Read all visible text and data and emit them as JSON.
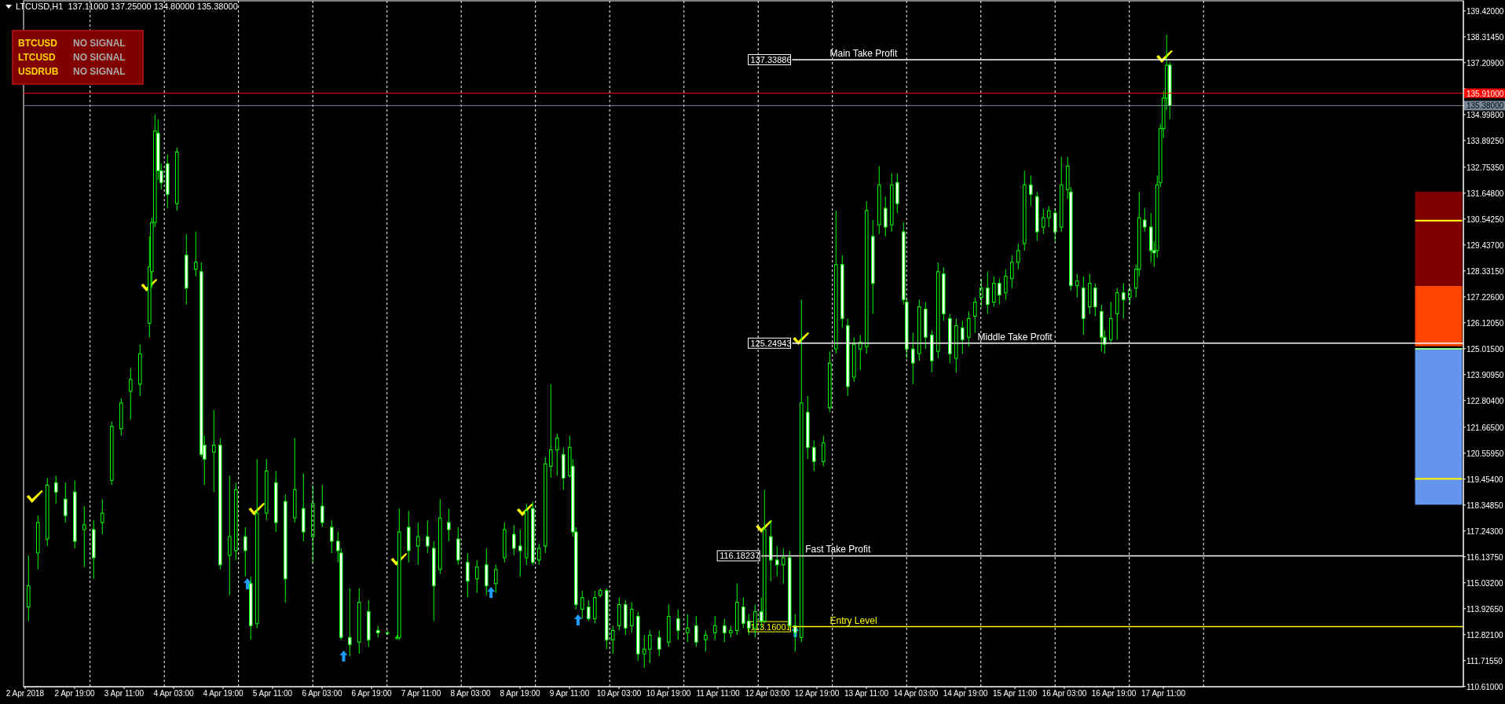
{
  "chart_data": {
    "type": "candlestick",
    "title": "LTCUSD,H1  137.11000 137.25000 134.80000 135.38000",
    "series": [
      {
        "color": "#00ff00",
        "x": [
          "2018-04-02T04:00",
          "2018-04-02T07:00",
          "2018-04-02T10:00",
          "2018-04-02T13:00",
          "2018-04-02T16:00",
          "2018-04-02T19:00",
          "2018-04-02T22:00",
          "2018-04-03T01:00",
          "2018-04-03T04:00",
          "2018-04-03T07:00",
          "2018-04-03T10:00",
          "2018-04-03T13:00",
          "2018-04-03T16:00",
          "2018-04-03T19:00",
          "2018-04-03T20:00",
          "2018-04-03T21:00",
          "2018-04-03T22:00",
          "2018-04-03T23:00",
          "2018-04-04T01:00",
          "2018-04-04T04:00",
          "2018-04-04T07:00",
          "2018-04-04T10:00",
          "2018-04-04T12:00",
          "2018-04-04T13:00",
          "2018-04-04T16:00",
          "2018-04-04T18:00",
          "2018-04-04T21:00",
          "2018-04-04T23:00",
          "2018-04-05T02:00",
          "2018-04-05T04:00",
          "2018-04-05T06:00",
          "2018-04-05T09:00",
          "2018-04-05T12:00",
          "2018-04-05T15:00",
          "2018-04-05T18:00",
          "2018-04-05T21:00",
          "2018-04-06T00:00",
          "2018-04-06T03:00",
          "2018-04-06T06:00",
          "2018-04-06T08:00",
          "2018-04-06T09:00",
          "2018-04-06T12:00",
          "2018-04-06T15:00",
          "2018-04-06T18:00",
          "2018-04-06T21:00",
          "2018-04-07T00:00",
          "2018-04-07T03:00",
          "2018-04-07T04:00",
          "2018-04-07T07:00",
          "2018-04-07T10:00",
          "2018-04-07T13:00",
          "2018-04-07T15:00",
          "2018-04-07T17:00",
          "2018-04-07T20:00",
          "2018-04-07T23:00",
          "2018-04-08T02:00",
          "2018-04-08T05:00",
          "2018-04-08T08:00",
          "2018-04-08T11:00",
          "2018-04-08T14:00",
          "2018-04-08T17:00",
          "2018-04-08T19:00",
          "2018-04-08T21:00",
          "2018-04-08T23:00",
          "2018-04-09T01:00",
          "2018-04-09T03:00",
          "2018-04-09T05:00",
          "2018-04-09T07:00",
          "2018-04-09T09:00",
          "2018-04-09T11:00",
          "2018-04-09T12:00",
          "2018-04-09T13:00",
          "2018-04-09T15:00",
          "2018-04-09T17:00",
          "2018-04-09T19:00",
          "2018-04-09T21:00",
          "2018-04-09T23:00",
          "2018-04-10T01:00",
          "2018-04-10T03:00",
          "2018-04-10T05:00",
          "2018-04-10T07:00",
          "2018-04-10T09:00",
          "2018-04-10T11:00",
          "2018-04-10T13:00",
          "2018-04-10T16:00",
          "2018-04-10T19:00",
          "2018-04-10T22:00",
          "2018-04-11T01:00",
          "2018-04-11T04:00",
          "2018-04-11T07:00",
          "2018-04-11T10:00",
          "2018-04-11T13:00",
          "2018-04-11T15:00",
          "2018-04-11T17:00",
          "2018-04-11T19:00",
          "2018-04-11T21:00",
          "2018-04-11T23:00",
          "2018-04-12T01:00",
          "2018-04-12T02:00",
          "2018-04-12T04:00",
          "2018-04-12T06:00",
          "2018-04-12T08:00",
          "2018-04-12T10:00",
          "2018-04-12T12:00",
          "2018-04-12T14:00",
          "2018-04-12T16:00",
          "2018-04-12T18:00",
          "2018-04-12T21:00",
          "2018-04-12T23:00",
          "2018-04-13T01:00",
          "2018-04-13T03:00",
          "2018-04-13T05:00",
          "2018-04-13T07:00",
          "2018-04-13T09:00",
          "2018-04-13T11:00",
          "2018-04-13T13:00",
          "2018-04-13T15:00",
          "2018-04-13T17:00",
          "2018-04-13T19:00",
          "2018-04-13T21:00",
          "2018-04-13T23:00",
          "2018-04-14T00:00",
          "2018-04-14T02:00",
          "2018-04-14T04:00",
          "2018-04-14T06:00",
          "2018-04-14T08:00",
          "2018-04-14T10:00",
          "2018-04-14T12:00",
          "2018-04-14T14:00",
          "2018-04-14T16:00",
          "2018-04-14T18:00",
          "2018-04-14T20:00",
          "2018-04-14T22:00",
          "2018-04-15T00:00",
          "2018-04-15T02:00",
          "2018-04-15T04:00",
          "2018-04-15T06:00",
          "2018-04-15T08:00",
          "2018-04-15T10:00",
          "2018-04-15T12:00",
          "2018-04-15T14:00",
          "2018-04-15T16:00",
          "2018-04-15T18:00",
          "2018-04-15T20:00",
          "2018-04-15T22:00",
          "2018-04-16T00:00",
          "2018-04-16T02:00",
          "2018-04-16T04:00",
          "2018-04-16T05:00",
          "2018-04-16T07:00",
          "2018-04-16T09:00",
          "2018-04-16T11:00",
          "2018-04-16T13:00",
          "2018-04-16T15:00",
          "2018-04-16T16:00",
          "2018-04-16T18:00",
          "2018-04-16T20:00",
          "2018-04-16T22:00",
          "2018-04-17T00:00",
          "2018-04-17T02:00",
          "2018-04-17T03:00",
          "2018-04-17T05:00",
          "2018-04-17T07:00",
          "2018-04-17T08:00",
          "2018-04-17T09:00",
          "2018-04-17T10:00",
          "2018-04-17T11:00",
          "2018-04-17T12:00",
          "2018-04-17T13:00"
        ],
        "ohlc": [
          [
            114.0,
            116.2,
            113.4,
            114.9
          ],
          [
            116.3,
            117.9,
            115.6,
            117.6
          ],
          [
            116.9,
            119.5,
            116.6,
            119.2
          ],
          [
            119.3,
            119.6,
            118.4,
            118.9
          ],
          [
            118.6,
            119.3,
            117.6,
            117.9
          ],
          [
            118.9,
            119.4,
            116.5,
            116.8
          ],
          [
            117.3,
            118.3,
            115.7,
            117.5
          ],
          [
            117.3,
            117.7,
            115.2,
            116.1
          ],
          [
            117.6,
            118.6,
            117.1,
            118.0
          ],
          [
            119.4,
            121.9,
            119.2,
            121.7
          ],
          [
            121.6,
            122.9,
            121.3,
            122.7
          ],
          [
            123.2,
            124.2,
            122.0,
            123.7
          ],
          [
            123.5,
            125.2,
            123.0,
            124.8
          ],
          [
            126.1,
            129.8,
            125.5,
            128.5
          ],
          [
            128.3,
            130.6,
            127.6,
            130.4
          ],
          [
            130.4,
            135.0,
            130.2,
            134.3
          ],
          [
            134.2,
            134.8,
            132.2,
            132.6
          ],
          [
            132.6,
            132.9,
            131.8,
            132.1
          ],
          [
            132.9,
            133.3,
            131.0,
            131.6
          ],
          [
            131.2,
            133.6,
            130.9,
            133.4
          ],
          [
            129.0,
            129.9,
            126.9,
            127.6
          ],
          [
            128.4,
            130.0,
            128.1,
            128.7
          ],
          [
            128.3,
            128.7,
            120.4,
            120.5
          ],
          [
            120.9,
            121.3,
            119.2,
            120.3
          ],
          [
            120.6,
            122.4,
            118.9,
            120.9
          ],
          [
            120.9,
            121.2,
            115.6,
            115.8
          ],
          [
            116.2,
            119.6,
            114.5,
            117.0
          ],
          [
            116.4,
            119.3,
            116.0,
            119.0
          ],
          [
            117.0,
            117.4,
            115.3,
            116.4
          ],
          [
            115.0,
            115.3,
            112.6,
            113.2
          ],
          [
            113.3,
            120.3,
            113.1,
            118.0
          ],
          [
            118.0,
            120.3,
            117.7,
            119.8
          ],
          [
            119.3,
            119.8,
            117.2,
            117.6
          ],
          [
            118.5,
            118.8,
            114.2,
            115.2
          ],
          [
            117.8,
            121.2,
            117.6,
            119.0
          ],
          [
            118.2,
            119.7,
            116.8,
            117.2
          ],
          [
            117.0,
            119.2,
            115.9,
            118.4
          ],
          [
            118.3,
            119.2,
            117.4,
            117.6
          ],
          [
            117.4,
            117.7,
            116.3,
            116.8
          ],
          [
            116.8,
            117.2,
            115.9,
            116.4
          ],
          [
            116.3,
            116.5,
            112.6,
            112.7
          ],
          [
            112.7,
            114.8,
            111.9,
            112.4
          ],
          [
            112.5,
            114.8,
            112.0,
            114.2
          ],
          [
            113.8,
            114.3,
            112.3,
            112.6
          ],
          [
            113.0,
            113.2,
            112.7,
            112.9
          ],
          [
            112.9,
            113.0,
            112.8,
            112.9
          ],
          [
            112.7,
            112.8,
            112.6,
            112.7
          ],
          [
            112.7,
            118.2,
            112.6,
            117.2
          ],
          [
            117.4,
            118.1,
            115.9,
            116.4
          ],
          [
            116.6,
            117.6,
            115.8,
            117.0
          ],
          [
            117.0,
            117.7,
            116.3,
            116.6
          ],
          [
            116.5,
            116.8,
            113.4,
            114.9
          ],
          [
            115.6,
            118.6,
            115.4,
            117.8
          ],
          [
            117.6,
            118.2,
            116.8,
            117.3
          ],
          [
            116.9,
            117.4,
            115.8,
            116.0
          ],
          [
            115.9,
            116.3,
            114.4,
            115.1
          ],
          [
            115.2,
            116.0,
            114.6,
            115.7
          ],
          [
            115.8,
            116.5,
            114.5,
            114.9
          ],
          [
            115.0,
            115.8,
            114.6,
            115.6
          ],
          [
            116.1,
            117.6,
            115.9,
            117.3
          ],
          [
            117.1,
            117.5,
            116.2,
            116.5
          ],
          [
            116.6,
            117.3,
            115.3,
            116.4
          ],
          [
            116.1,
            118.4,
            115.8,
            118.1
          ],
          [
            118.2,
            118.5,
            115.8,
            115.9
          ],
          [
            116.0,
            116.7,
            115.8,
            116.5
          ],
          [
            116.6,
            120.4,
            116.3,
            120.1
          ],
          [
            120.0,
            123.5,
            119.5,
            120.7
          ],
          [
            120.7,
            121.4,
            119.6,
            121.2
          ],
          [
            120.5,
            120.8,
            119.0,
            119.5
          ],
          [
            119.6,
            121.3,
            119.5,
            120.8
          ],
          [
            120.0,
            120.3,
            117.0,
            117.2
          ],
          [
            117.2,
            117.4,
            113.9,
            114.1
          ],
          [
            113.9,
            114.7,
            113.5,
            114.4
          ],
          [
            114.0,
            114.3,
            113.4,
            113.5
          ],
          [
            113.5,
            114.7,
            113.3,
            114.4
          ],
          [
            114.5,
            114.8,
            114.4,
            114.7
          ],
          [
            114.7,
            114.8,
            112.2,
            112.6
          ],
          [
            112.6,
            113.2,
            112.0,
            113.0
          ],
          [
            113.2,
            114.4,
            113.0,
            114.1
          ],
          [
            114.1,
            114.3,
            112.8,
            113.1
          ],
          [
            113.2,
            114.2,
            112.9,
            113.9
          ],
          [
            113.6,
            113.8,
            111.7,
            112.0
          ],
          [
            112.0,
            112.8,
            111.4,
            112.2
          ],
          [
            112.2,
            113.0,
            111.6,
            112.8
          ],
          [
            112.7,
            113.0,
            111.9,
            112.2
          ],
          [
            112.5,
            114.1,
            112.3,
            113.6
          ],
          [
            113.5,
            113.9,
            112.6,
            113.0
          ],
          [
            112.9,
            113.7,
            112.5,
            113.1
          ],
          [
            113.2,
            113.6,
            112.3,
            112.5
          ],
          [
            112.6,
            113.0,
            112.1,
            112.8
          ],
          [
            112.9,
            113.6,
            112.6,
            113.2
          ],
          [
            113.2,
            113.5,
            112.5,
            112.9
          ],
          [
            112.9,
            113.2,
            112.7,
            113.0
          ],
          [
            113.0,
            115.0,
            112.8,
            114.2
          ],
          [
            114.0,
            114.4,
            113.1,
            113.3
          ],
          [
            113.4,
            113.7,
            112.8,
            113.1
          ],
          [
            113.1,
            114.1,
            112.7,
            113.8
          ],
          [
            113.8,
            114.4,
            113.1,
            113.4
          ],
          [
            113.4,
            119.0,
            113.3,
            117.3
          ],
          [
            117.0,
            117.7,
            115.1,
            116.0
          ],
          [
            116.0,
            116.6,
            115.3,
            115.8
          ],
          [
            115.8,
            116.5,
            115.0,
            116.1
          ],
          [
            116.1,
            116.4,
            113.1,
            113.2
          ],
          [
            113.2,
            113.7,
            112.1,
            112.9
          ],
          [
            112.7,
            127.1,
            112.5,
            122.7
          ],
          [
            122.3,
            123.0,
            120.3,
            120.8
          ],
          [
            120.8,
            121.1,
            119.8,
            120.2
          ],
          [
            120.2,
            121.3,
            120.0,
            121.0
          ],
          [
            122.5,
            124.9,
            122.3,
            124.4
          ],
          [
            125.0,
            130.9,
            124.8,
            128.6
          ],
          [
            128.6,
            129.0,
            125.9,
            126.3
          ],
          [
            126.0,
            126.3,
            123.0,
            123.4
          ],
          [
            123.8,
            125.5,
            123.6,
            125.2
          ],
          [
            125.0,
            125.6,
            124.1,
            125.3
          ],
          [
            125.1,
            131.3,
            124.8,
            130.9
          ],
          [
            129.8,
            130.5,
            126.5,
            127.8
          ],
          [
            130.3,
            132.8,
            129.9,
            132.0
          ],
          [
            131.0,
            131.5,
            129.8,
            130.2
          ],
          [
            130.3,
            132.5,
            130.0,
            132.0
          ],
          [
            132.1,
            132.5,
            130.8,
            131.2
          ],
          [
            130.0,
            130.4,
            126.9,
            127.1
          ],
          [
            127.0,
            127.2,
            124.6,
            125.0
          ],
          [
            125.0,
            125.7,
            123.5,
            124.4
          ],
          [
            124.8,
            127.1,
            124.5,
            126.8
          ],
          [
            126.7,
            127.0,
            125.0,
            125.5
          ],
          [
            125.6,
            125.8,
            124.0,
            124.5
          ],
          [
            124.9,
            128.7,
            124.6,
            128.3
          ],
          [
            128.2,
            128.5,
            126.2,
            126.5
          ],
          [
            126.3,
            126.5,
            124.4,
            124.8
          ],
          [
            124.6,
            126.3,
            124.0,
            126.0
          ],
          [
            125.9,
            126.2,
            124.8,
            125.4
          ],
          [
            125.5,
            126.6,
            125.1,
            126.3
          ],
          [
            126.4,
            127.2,
            125.7,
            127.0
          ],
          [
            127.2,
            128.0,
            126.8,
            127.6
          ],
          [
            127.6,
            128.3,
            126.5,
            126.9
          ],
          [
            127.0,
            128.1,
            126.8,
            127.8
          ],
          [
            127.8,
            128.0,
            126.9,
            127.3
          ],
          [
            127.4,
            128.4,
            127.1,
            128.1
          ],
          [
            128.0,
            129.0,
            127.6,
            128.7
          ],
          [
            128.7,
            129.5,
            128.4,
            129.2
          ],
          [
            129.5,
            132.6,
            129.2,
            132.0
          ],
          [
            132.0,
            132.4,
            131.1,
            131.6
          ],
          [
            131.5,
            131.7,
            129.6,
            130.0
          ],
          [
            130.2,
            131.0,
            129.9,
            130.6
          ],
          [
            130.6,
            131.1,
            130.2,
            130.9
          ],
          [
            130.8,
            131.0,
            129.6,
            130.0
          ],
          [
            130.2,
            133.2,
            130.0,
            132.0
          ],
          [
            131.8,
            133.2,
            131.4,
            132.8
          ],
          [
            131.7,
            131.9,
            127.5,
            127.7
          ],
          [
            127.7,
            128.2,
            127.2,
            127.9
          ],
          [
            127.6,
            128.1,
            125.6,
            126.3
          ],
          [
            126.8,
            128.2,
            126.5,
            127.8
          ],
          [
            127.6,
            127.8,
            126.4,
            126.8
          ],
          [
            126.6,
            126.9,
            124.9,
            125.5
          ],
          [
            125.5,
            125.8,
            124.8,
            125.2
          ],
          [
            125.4,
            127.0,
            125.2,
            126.3
          ],
          [
            126.5,
            127.6,
            125.4,
            127.4
          ],
          [
            127.4,
            127.8,
            126.3,
            127.1
          ],
          [
            127.2,
            127.7,
            126.9,
            127.5
          ],
          [
            127.6,
            128.6,
            127.2,
            128.4
          ],
          [
            128.4,
            131.7,
            128.1,
            130.6
          ],
          [
            130.5,
            131.0,
            130.0,
            130.2
          ],
          [
            130.2,
            130.8,
            128.7,
            129.2
          ],
          [
            129.2,
            129.6,
            128.5,
            129.1
          ],
          [
            129.2,
            132.4,
            128.9,
            132.0
          ],
          [
            132.1,
            134.6,
            131.9,
            134.4
          ],
          [
            134.4,
            136.0,
            134.0,
            135.7
          ],
          [
            135.7,
            138.4,
            135.2,
            137.1
          ],
          [
            137.11,
            137.25,
            134.8,
            135.38
          ]
        ]
      },
      {
        "type": "bar",
        "x": [
          "2018-04-21T04:00"
        ],
        "base": [
          118.36
        ],
        "values": [
          6.61
        ],
        "color": "#6495ed"
      },
      {
        "type": "bar",
        "x": [
          "2018-04-21T04:00"
        ],
        "base": [
          124.97
        ],
        "values": [
          0.07
        ],
        "color": "#98fb98"
      },
      {
        "type": "bar",
        "x": [
          "2018-04-21T04:00"
        ],
        "base": [
          125.12
        ],
        "values": [
          2.57
        ],
        "color": "#ff4500"
      },
      {
        "type": "bar",
        "x": [
          "2018-04-21T04:00"
        ],
        "base": [
          127.69
        ],
        "values": [
          4.02
        ],
        "color": "#800000"
      },
      {
        "type": "bar",
        "x": [
          "2018-04-21T04:00"
        ],
        "base": [
          130.44
        ],
        "values": [
          0.07
        ],
        "color": "#ffff00"
      },
      {
        "type": "bar",
        "x": [
          "2018-04-21T04:00"
        ],
        "base": [
          119.43
        ],
        "values": [
          0.07
        ],
        "color": "#ffff00"
      }
    ],
    "xlim": [
      "2018-04-02T02:30",
      "2018-04-21T12:00"
    ],
    "xticks": [
      {
        "value": "2018-04-02T03:00",
        "label": "2 Apr 2018"
      },
      {
        "value": "2018-04-02T19:00",
        "label": "2 Apr 19:00"
      },
      {
        "value": "2018-04-03T11:00",
        "label": "3 Apr 11:00"
      },
      {
        "value": "2018-04-04T03:00",
        "label": "4 Apr 03:00"
      },
      {
        "value": "2018-04-04T19:00",
        "label": "4 Apr 19:00"
      },
      {
        "value": "2018-04-05T11:00",
        "label": "5 Apr 11:00"
      },
      {
        "value": "2018-04-06T03:00",
        "label": "6 Apr 03:00"
      },
      {
        "value": "2018-04-06T19:00",
        "label": "6 Apr 19:00"
      },
      {
        "value": "2018-04-07T11:00",
        "label": "7 Apr 11:00"
      },
      {
        "value": "2018-04-08T03:00",
        "label": "8 Apr 03:00"
      },
      {
        "value": "2018-04-08T19:00",
        "label": "8 Apr 19:00"
      },
      {
        "value": "2018-04-09T11:00",
        "label": "9 Apr 11:00"
      },
      {
        "value": "2018-04-10T03:00",
        "label": "10 Apr 03:00"
      },
      {
        "value": "2018-04-10T19:00",
        "label": "10 Apr 19:00"
      },
      {
        "value": "2018-04-11T11:00",
        "label": "11 Apr 11:00"
      },
      {
        "value": "2018-04-12T03:00",
        "label": "12 Apr 03:00"
      },
      {
        "value": "2018-04-12T19:00",
        "label": "12 Apr 19:00"
      },
      {
        "value": "2018-04-13T11:00",
        "label": "13 Apr 11:00"
      },
      {
        "value": "2018-04-14T03:00",
        "label": "14 Apr 03:00"
      },
      {
        "value": "2018-04-14T19:00",
        "label": "14 Apr 19:00"
      },
      {
        "value": "2018-04-15T11:00",
        "label": "15 Apr 11:00"
      },
      {
        "value": "2018-04-16T03:00",
        "label": "16 Apr 03:00"
      },
      {
        "value": "2018-04-16T19:00",
        "label": "16 Apr 19:00"
      },
      {
        "value": "2018-04-17T11:00",
        "label": "17 Apr 11:00"
      }
    ],
    "ylim": [
      110.6,
      139.85
    ],
    "yticks": [
      {
        "value": 139.42,
        "label": "139.42000"
      },
      {
        "value": 138.3145,
        "label": "138.31450"
      },
      {
        "value": 137.209,
        "label": "137.20900"
      },
      {
        "value": 136.1035,
        "label": null
      },
      {
        "value": 135.91,
        "label": "135.91000"
      },
      {
        "value": 135.38,
        "label": "135.38000"
      },
      {
        "value": 134.998,
        "label": "134.99800"
      },
      {
        "value": 133.8925,
        "label": "133.89250"
      },
      {
        "value": 132.7535,
        "label": "132.75350"
      },
      {
        "value": 131.648,
        "label": "131.64800"
      },
      {
        "value": 130.5425,
        "label": "130.54250"
      },
      {
        "value": 129.437,
        "label": "129.43700"
      },
      {
        "value": 128.3315,
        "label": "128.33150"
      },
      {
        "value": 127.226,
        "label": "127.22600"
      },
      {
        "value": 126.1205,
        "label": "126.12050"
      },
      {
        "value": 125.015,
        "label": "125.01500"
      },
      {
        "value": 123.9095,
        "label": "123.90950"
      },
      {
        "value": 122.804,
        "label": "122.80400"
      },
      {
        "value": 121.665,
        "label": "121.66500"
      },
      {
        "value": 120.5595,
        "label": "120.55950"
      },
      {
        "value": 119.454,
        "label": "119.45400"
      },
      {
        "value": 118.3485,
        "label": "118.34850"
      },
      {
        "value": 117.243,
        "label": "117.24300"
      },
      {
        "value": 116.1375,
        "label": "116.13750"
      },
      {
        "value": 115.032,
        "label": "115.03200"
      },
      {
        "value": 113.9265,
        "label": "113.92650"
      },
      {
        "value": 112.821,
        "label": "112.82100"
      },
      {
        "value": 111.7155,
        "label": "111.71550"
      },
      {
        "value": 110.61,
        "label": "110.61000"
      }
    ],
    "ref_lines": [
      {
        "axis": "x",
        "value": "2018-04-03T00:00",
        "color": "#ffffff",
        "line_style": "dashed"
      },
      {
        "axis": "x",
        "value": "2018-04-04T00:00",
        "color": "#ffffff",
        "line_style": "dashed"
      },
      {
        "axis": "x",
        "value": "2018-04-05T00:00",
        "color": "#ffffff",
        "line_style": "dashed"
      },
      {
        "axis": "x",
        "value": "2018-04-06T00:00",
        "color": "#ffffff",
        "line_style": "dashed"
      },
      {
        "axis": "x",
        "value": "2018-04-07T00:00",
        "color": "#ffffff",
        "line_style": "dashed"
      },
      {
        "axis": "x",
        "value": "2018-04-08T00:00",
        "color": "#ffffff",
        "line_style": "dashed"
      },
      {
        "axis": "x",
        "value": "2018-04-09T00:00",
        "color": "#ffffff",
        "line_style": "dashed"
      },
      {
        "axis": "x",
        "value": "2018-04-10T00:00",
        "color": "#ffffff",
        "line_style": "dashed"
      },
      {
        "axis": "x",
        "value": "2018-04-11T00:00",
        "color": "#ffffff",
        "line_style": "dashed"
      },
      {
        "axis": "x",
        "value": "2018-04-12T00:00",
        "color": "#ffffff",
        "line_style": "dashed"
      },
      {
        "axis": "x",
        "value": "2018-04-13T00:00",
        "color": "#ffffff",
        "line_style": "dashed"
      },
      {
        "axis": "x",
        "value": "2018-04-14T00:00",
        "color": "#ffffff",
        "line_style": "dashed"
      },
      {
        "axis": "x",
        "value": "2018-04-15T00:00",
        "color": "#ffffff",
        "line_style": "dashed"
      },
      {
        "axis": "x",
        "value": "2018-04-16T00:00",
        "color": "#ffffff",
        "line_style": "dashed"
      },
      {
        "axis": "x",
        "value": "2018-04-17T00:00",
        "color": "#ffffff",
        "line_style": "dashed"
      },
      {
        "axis": "x",
        "value": "2018-04-18T00:00",
        "color": "#ffffff",
        "line_style": "dashed"
      },
      {
        "axis": "y",
        "value": 137.33886,
        "label": "Main Take Profit",
        "color": "#ffffff"
      },
      {
        "axis": "y",
        "value": 135.91,
        "color": "#ff0000"
      },
      {
        "axis": "y",
        "value": 135.38,
        "color": "#778899"
      },
      {
        "axis": "y",
        "value": 125.24943,
        "label": "Middle Take Profit",
        "color": "#ffffff"
      },
      {
        "axis": "y",
        "value": 116.18237,
        "label": "Fast Take Profit",
        "color": "#ffffff"
      },
      {
        "axis": "y",
        "value": 113.16001,
        "label": "Entry Level",
        "color": "#ffff00"
      }
    ],
    "annotations": [
      "BTCUSD",
      "NO SIGNAL",
      "LTCUSD",
      "NO SIGNAL",
      "USDRUB",
      "NO SIGNAL",
      {
        "text": "137.33886",
        "x": "2018-04-12T11:00",
        "y": 137.33886
      },
      {
        "text": "125.24943",
        "x": "2018-04-12T11:00",
        "y": 125.24943
      },
      {
        "text": "116.18237",
        "x": "2018-04-12T01:00",
        "y": 116.18237
      },
      {
        "text": "113.16001",
        "x": "2018-04-12T11:00",
        "y": 113.16001
      }
    ]
  }
}
